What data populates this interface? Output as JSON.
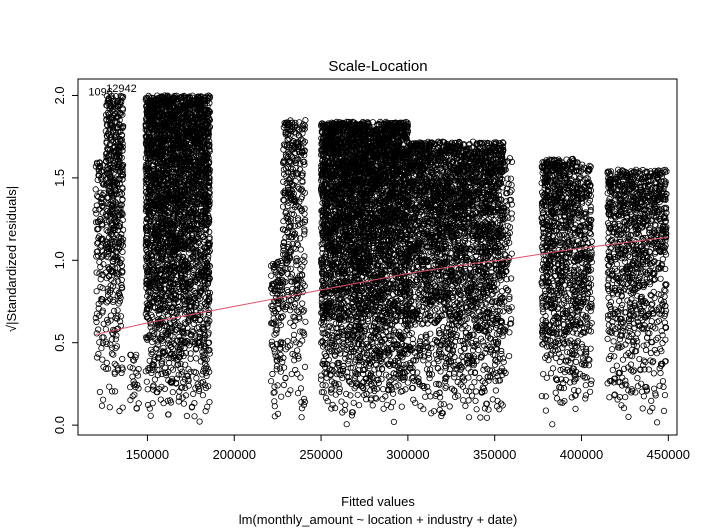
{
  "chart_data": {
    "type": "scatter",
    "title": "Scale-Location",
    "xlabel": "Fitted values",
    "sublabel": "lm(monthly_amount ~ location + industry + date)",
    "ylabel": "√|Standardized residuals|",
    "xlim": [
      110000,
      455000
    ],
    "ylim": [
      -0.06,
      2.1
    ],
    "x_ticks": [
      150000,
      200000,
      250000,
      300000,
      350000,
      400000,
      450000
    ],
    "x_tick_labels": [
      "150000",
      "200000",
      "250000",
      "300000",
      "350000",
      "400000",
      "450000"
    ],
    "y_ticks": [
      0.0,
      0.5,
      1.0,
      1.5,
      2.0
    ],
    "y_tick_labels": [
      "0.0",
      "0.5",
      "1.0",
      "1.5",
      "2.0"
    ],
    "point_labels": [
      {
        "text": "1096",
        "x": 123000,
        "y": 2.0
      },
      {
        "text": "12942",
        "x": 135000,
        "y": 2.02
      }
    ],
    "smooth_line": {
      "color": "#DF536B",
      "x": [
        120000,
        150000,
        180000,
        210000,
        240000,
        270000,
        300000,
        330000,
        360000,
        390000,
        420000,
        450000
      ],
      "y": [
        0.55,
        0.62,
        0.68,
        0.74,
        0.8,
        0.86,
        0.92,
        0.97,
        1.01,
        1.06,
        1.1,
        1.14
      ]
    },
    "clusters": [
      {
        "x_min": 120000,
        "x_max": 125000,
        "y_max": 1.6,
        "n": 110
      },
      {
        "x_min": 126000,
        "x_max": 136000,
        "y_max": 2.0,
        "n": 500
      },
      {
        "x_min": 140000,
        "x_max": 145000,
        "y_max": 0.45,
        "n": 25
      },
      {
        "x_min": 149000,
        "x_max": 186000,
        "y_max": 2.0,
        "n": 3200
      },
      {
        "x_min": 221000,
        "x_max": 228000,
        "y_max": 1.0,
        "n": 120
      },
      {
        "x_min": 228000,
        "x_max": 241000,
        "y_max": 1.86,
        "n": 380
      },
      {
        "x_min": 250000,
        "x_max": 300000,
        "y_max": 1.84,
        "n": 4200
      },
      {
        "x_min": 300000,
        "x_max": 355000,
        "y_max": 1.72,
        "n": 3000
      },
      {
        "x_min": 355000,
        "x_max": 360000,
        "y_max": 1.62,
        "n": 80
      },
      {
        "x_min": 377000,
        "x_max": 398000,
        "y_max": 1.62,
        "n": 900
      },
      {
        "x_min": 398000,
        "x_max": 406000,
        "y_max": 1.58,
        "n": 260
      },
      {
        "x_min": 415000,
        "x_max": 449000,
        "y_max": 1.55,
        "n": 1100
      }
    ],
    "marker_color": "#000000",
    "grid": false,
    "legend": "none"
  }
}
